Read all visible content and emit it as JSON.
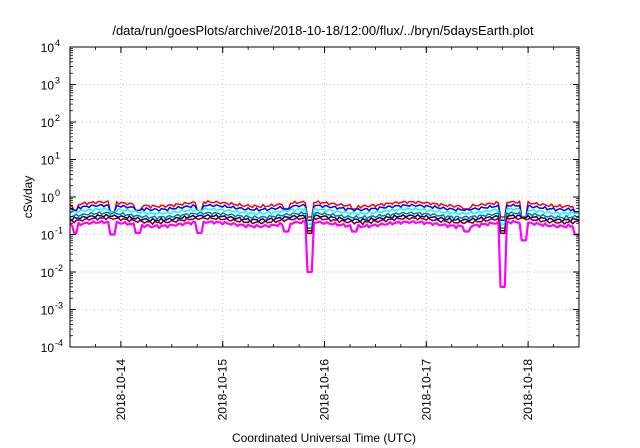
{
  "chart_data": {
    "type": "line",
    "title": "/data/run/goesPlots/archive/2018-10-18/12:00/flux/../bryn/5daysEarth.plot",
    "xlabel": "Coordinated Universal Time (UTC)",
    "ylabel": "cSv/day",
    "yscale": "log",
    "ylim": [
      0.0001,
      10000
    ],
    "y_ticks": [
      {
        "base": "10",
        "exp": "-4"
      },
      {
        "base": "10",
        "exp": "-3"
      },
      {
        "base": "10",
        "exp": "-2"
      },
      {
        "base": "10",
        "exp": "-1"
      },
      {
        "base": "10",
        "exp": "0"
      },
      {
        "base": "10",
        "exp": "1"
      },
      {
        "base": "10",
        "exp": "2"
      },
      {
        "base": "10",
        "exp": "3"
      },
      {
        "base": "10",
        "exp": "4"
      }
    ],
    "xlim": [
      "2018-10-13T12:00",
      "2018-10-18T12:00"
    ],
    "x_ticks": [
      "2018-10-14",
      "2018-10-15",
      "2018-10-16",
      "2018-10-17",
      "2018-10-18"
    ],
    "grid": true,
    "legend": "none",
    "series": [
      {
        "color": "#ff00ff",
        "base": 0.19,
        "dips": [
          {
            "x": "2018-10-13T13:12",
            "y": 0.11
          },
          {
            "x": "2018-10-13T22:00",
            "y": 0.1
          },
          {
            "x": "2018-10-14T04:00",
            "y": 0.11
          },
          {
            "x": "2018-10-14T18:30",
            "y": 0.11
          },
          {
            "x": "2018-10-15T15:00",
            "y": 0.12
          },
          {
            "x": "2018-10-15T20:30",
            "y": 0.01
          },
          {
            "x": "2018-10-16T07:00",
            "y": 0.12
          },
          {
            "x": "2018-10-17T09:30",
            "y": 0.12
          },
          {
            "x": "2018-10-17T18:00",
            "y": 0.004
          },
          {
            "x": "2018-10-17T23:00",
            "y": 0.07
          },
          {
            "x": "2018-10-18T11:30",
            "y": 0.1
          }
        ]
      },
      {
        "color": "#800000",
        "base": 0.24
      },
      {
        "color": "#00008b",
        "base": 0.28
      },
      {
        "color": "#008080",
        "base": 0.33
      },
      {
        "color": "#00ffff",
        "base": 0.42
      },
      {
        "color": "#0000ff",
        "base": 0.53
      },
      {
        "color": "#ff0000",
        "base": 0.65
      }
    ]
  }
}
